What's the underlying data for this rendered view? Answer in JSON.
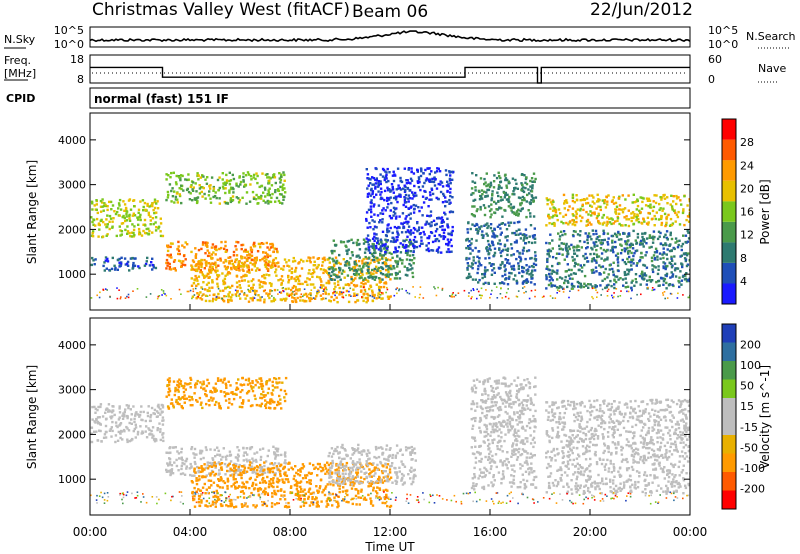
{
  "header": {
    "title": "Christmas Valley West (fitACF)",
    "beam": "Beam 06",
    "date": "22/Jun/2012"
  },
  "params": {
    "nsky_label": "N.Sky",
    "nsky_ticks": [
      "10^5",
      "10^0"
    ],
    "nsearch_label": "N.Search",
    "nsearch_ticks": [
      "10^5",
      "10^0"
    ],
    "freq_label_1": "Freq.",
    "freq_label_2": "[MHz]",
    "freq_ticks": [
      "18",
      "8"
    ],
    "nave_label": "Nave",
    "nave_ticks": [
      "60",
      "0"
    ],
    "cpid_label": "CPID",
    "cpid_value": "normal (fast) 151 IF",
    "freq_series": [
      {
        "t": 0.0,
        "f": 14.5
      },
      {
        "t": 2.9,
        "f": 14.5
      },
      {
        "t": 2.9,
        "f": 10.4
      },
      {
        "t": 15.0,
        "f": 10.4
      },
      {
        "t": 15.0,
        "f": 14.5
      },
      {
        "t": 17.9,
        "f": 14.5
      },
      {
        "t": 17.9,
        "f": 8.0
      },
      {
        "t": 18.05,
        "f": 8.0
      },
      {
        "t": 18.05,
        "f": 14.5
      },
      {
        "t": 24.0,
        "f": 14.5
      }
    ]
  },
  "colors": {
    "power": [
      "#1a1aff",
      "#1f4fb8",
      "#2e7a70",
      "#4a9a4a",
      "#7ac81c",
      "#e8c000",
      "#ff9a00",
      "#ff5a00",
      "#ff0000"
    ],
    "velocity": [
      "#ff0000",
      "#ff5a00",
      "#ff9a00",
      "#e8b000",
      "#bebebe",
      "#bebebe",
      "#7ac81c",
      "#4a9a4a",
      "#2e6fa0",
      "#1f3fb8"
    ],
    "ground_scatter": "#bebebe"
  },
  "chart_data": [
    {
      "type": "heatmap",
      "panel": "power",
      "ylabel": "Slant Range [km]",
      "xlabel": "Time UT",
      "xlim": [
        0,
        24
      ],
      "ylim": [
        200,
        4600
      ],
      "x_ticks": [
        "00:00",
        "04:00",
        "08:00",
        "12:00",
        "16:00",
        "20:00",
        "00:00"
      ],
      "y_ticks": [
        1000,
        2000,
        3000,
        4000
      ],
      "colorbar_label": "Power [dB]",
      "colorbar_ticks": [
        28,
        24,
        20,
        16,
        12,
        8,
        4
      ],
      "features": [
        {
          "t0": 0.0,
          "t1": 2.9,
          "r0": 1850,
          "r1": 2700,
          "value": 22
        },
        {
          "t0": 0.0,
          "t1": 2.6,
          "r0": 1100,
          "r1": 1400,
          "value": 8
        },
        {
          "t0": 3.0,
          "t1": 7.5,
          "r0": 1100,
          "r1": 1750,
          "value": 29
        },
        {
          "t0": 3.0,
          "t1": 7.8,
          "r0": 2600,
          "r1": 3300,
          "value": 19
        },
        {
          "t0": 4.0,
          "t1": 12.0,
          "r0": 400,
          "r1": 1400,
          "value": 26
        },
        {
          "t0": 9.5,
          "t1": 13.0,
          "r0": 900,
          "r1": 1800,
          "value": 14
        },
        {
          "t0": 11.0,
          "t1": 14.5,
          "r0": 1500,
          "r1": 3400,
          "value": 6
        },
        {
          "t0": 15.2,
          "t1": 17.8,
          "r0": 2300,
          "r1": 3300,
          "value": 14
        },
        {
          "t0": 15.0,
          "t1": 17.8,
          "r0": 800,
          "r1": 2200,
          "value": 10
        },
        {
          "t0": 18.2,
          "t1": 24.0,
          "r0": 2100,
          "r1": 2800,
          "value": 24
        },
        {
          "t0": 18.2,
          "t1": 24.0,
          "r0": 700,
          "r1": 2000,
          "value": 12
        }
      ]
    },
    {
      "type": "heatmap",
      "panel": "velocity",
      "ylabel": "Slant Range [km]",
      "xlabel": "Time UT",
      "xlim": [
        0,
        24
      ],
      "ylim": [
        200,
        4600
      ],
      "x_ticks": [
        "00:00",
        "04:00",
        "08:00",
        "12:00",
        "16:00",
        "20:00",
        "00:00"
      ],
      "y_ticks": [
        1000,
        2000,
        3000,
        4000
      ],
      "colorbar_label": "Velocity [m s^-1]",
      "colorbar_ticks": [
        200,
        100,
        50,
        15,
        -15,
        -50,
        -100,
        -200
      ],
      "features": [
        {
          "t0": 0.0,
          "t1": 2.9,
          "r0": 1850,
          "r1": 2700,
          "value": 0
        },
        {
          "t0": 3.0,
          "t1": 7.8,
          "r0": 1100,
          "r1": 1750,
          "value": 0
        },
        {
          "t0": 3.0,
          "t1": 7.8,
          "r0": 2600,
          "r1": 3300,
          "value": -60
        },
        {
          "t0": 4.0,
          "t1": 12.0,
          "r0": 400,
          "r1": 1400,
          "value": -70
        },
        {
          "t0": 9.5,
          "t1": 13.0,
          "r0": 900,
          "r1": 1800,
          "value": 0
        },
        {
          "t0": 15.2,
          "t1": 17.8,
          "r0": 800,
          "r1": 3300,
          "value": 0
        },
        {
          "t0": 18.2,
          "t1": 24.0,
          "r0": 700,
          "r1": 2800,
          "value": 0
        }
      ]
    }
  ]
}
